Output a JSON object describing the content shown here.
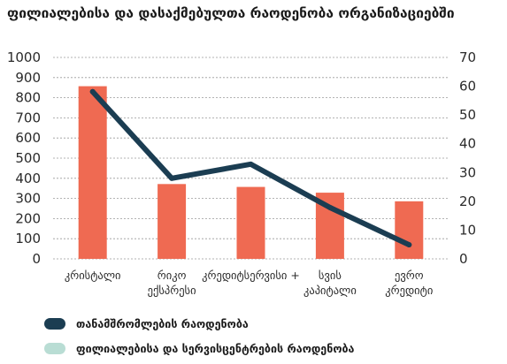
{
  "chart_data": {
    "type": "bar+line",
    "title": "ფილიალებისა და დასაქმებულთა რაოდენობა ორგანიზაციებში",
    "categories": [
      [
        "კრისტალი"
      ],
      [
        "რიკო",
        "ექსპრესი"
      ],
      [
        "კრედიტსერვისი +"
      ],
      [
        "სვის",
        "კაპიტალი"
      ],
      [
        "ევრო",
        "კრედიტი"
      ]
    ],
    "left_axis": {
      "ticks": [
        0,
        100,
        200,
        300,
        400,
        500,
        600,
        700,
        800,
        900,
        1000
      ],
      "ylim": [
        0,
        1000
      ]
    },
    "right_axis": {
      "ticks": [
        0,
        10,
        20,
        30,
        40,
        50,
        60,
        70
      ],
      "ylim": [
        0,
        70
      ]
    },
    "series": [
      {
        "name": "ფილიალებისა და სერვისცენტრების რაოდენობა",
        "chart": "bar",
        "axis": "right",
        "color": "#ef6a52",
        "values": [
          60,
          26,
          25,
          23,
          20
        ]
      },
      {
        "name": "თანამშრომლების რაოდენობა",
        "chart": "line",
        "axis": "left",
        "color": "#1b3d52",
        "values": [
          830,
          400,
          470,
          255,
          70
        ]
      }
    ],
    "grid": "horizontal dashed",
    "legend": "bottom-left"
  },
  "legend": [
    {
      "label": "თანამშრომლების რაოდენობა",
      "color": "#1b3d52"
    },
    {
      "label": "ფილიალებისა და სერვისცენტრების რაოდენობა",
      "color": "#b9ddd4"
    }
  ]
}
